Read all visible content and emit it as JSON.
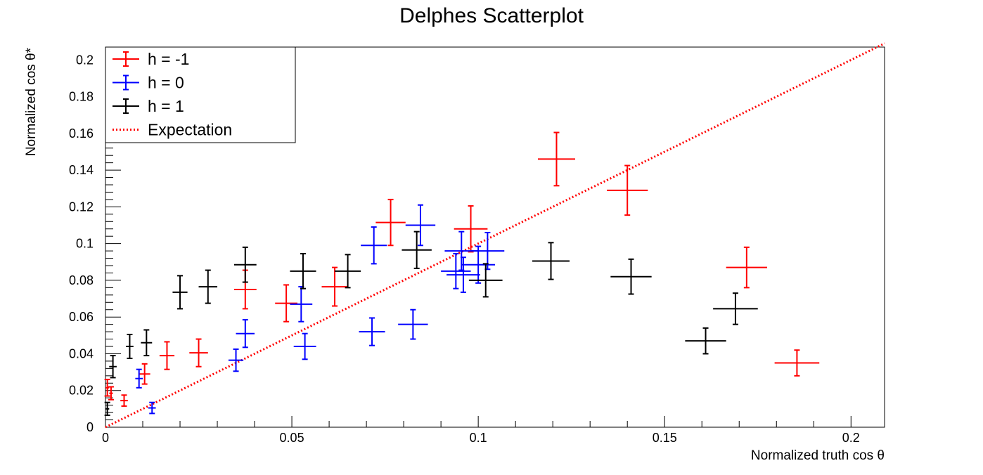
{
  "chart_data": {
    "type": "scatter",
    "title": "Delphes Scatterplot",
    "xlabel": "Normalized truth cos θ",
    "ylabel": "Normalized cos θ*",
    "xlim": [
      0,
      0.209
    ],
    "ylim": [
      0,
      0.207
    ],
    "x_ticks": [
      {
        "value": 0,
        "label": "0"
      },
      {
        "value": 0.05,
        "label": "0.05"
      },
      {
        "value": 0.1,
        "label": "0.1"
      },
      {
        "value": 0.15,
        "label": "0.15"
      },
      {
        "value": 0.2,
        "label": "0.2"
      }
    ],
    "y_ticks": [
      {
        "value": 0,
        "label": "0"
      },
      {
        "value": 0.02,
        "label": "0.02"
      },
      {
        "value": 0.04,
        "label": "0.04"
      },
      {
        "value": 0.06,
        "label": "0.06"
      },
      {
        "value": 0.08,
        "label": "0.08"
      },
      {
        "value": 0.1,
        "label": "0.1"
      },
      {
        "value": 0.12,
        "label": "0.12"
      },
      {
        "value": 0.14,
        "label": "0.14"
      },
      {
        "value": 0.16,
        "label": "0.16"
      },
      {
        "value": 0.18,
        "label": "0.18"
      },
      {
        "value": 0.2,
        "label": "0.2"
      }
    ],
    "grid": false,
    "legend_position": "top-left",
    "series": [
      {
        "name": "h = -1",
        "color": "#ff0000",
        "points": [
          {
            "x": 0.0005,
            "y": 0.0215,
            "ex": 0.0005,
            "ey": 0.0045
          },
          {
            "x": 0.0015,
            "y": 0.0185,
            "ex": 0.0005,
            "ey": 0.0035
          },
          {
            "x": 0.005,
            "y": 0.0145,
            "ex": 0.001,
            "ey": 0.003
          },
          {
            "x": 0.0105,
            "y": 0.029,
            "ex": 0.0015,
            "ey": 0.0055
          },
          {
            "x": 0.0165,
            "y": 0.039,
            "ex": 0.002,
            "ey": 0.0075
          },
          {
            "x": 0.025,
            "y": 0.0405,
            "ex": 0.0025,
            "ey": 0.0075
          },
          {
            "x": 0.0375,
            "y": 0.075,
            "ex": 0.003,
            "ey": 0.0105
          },
          {
            "x": 0.0485,
            "y": 0.0675,
            "ex": 0.003,
            "ey": 0.01
          },
          {
            "x": 0.0615,
            "y": 0.0765,
            "ex": 0.0035,
            "ey": 0.0105
          },
          {
            "x": 0.0765,
            "y": 0.1115,
            "ex": 0.004,
            "ey": 0.0125
          },
          {
            "x": 0.098,
            "y": 0.108,
            "ex": 0.0045,
            "ey": 0.0125
          },
          {
            "x": 0.121,
            "y": 0.146,
            "ex": 0.005,
            "ey": 0.0145
          },
          {
            "x": 0.14,
            "y": 0.129,
            "ex": 0.0055,
            "ey": 0.0135
          },
          {
            "x": 0.172,
            "y": 0.087,
            "ex": 0.0055,
            "ey": 0.011
          },
          {
            "x": 0.1855,
            "y": 0.035,
            "ex": 0.006,
            "ey": 0.007
          }
        ]
      },
      {
        "name": "h = 0",
        "color": "#0000ff",
        "points": [
          {
            "x": 0.009,
            "y": 0.0265,
            "ex": 0.001,
            "ey": 0.005
          },
          {
            "x": 0.0125,
            "y": 0.0105,
            "ex": 0.001,
            "ey": 0.003
          },
          {
            "x": 0.035,
            "y": 0.0365,
            "ex": 0.002,
            "ey": 0.006
          },
          {
            "x": 0.0375,
            "y": 0.051,
            "ex": 0.0025,
            "ey": 0.0075
          },
          {
            "x": 0.0525,
            "y": 0.067,
            "ex": 0.003,
            "ey": 0.0095
          },
          {
            "x": 0.0535,
            "y": 0.044,
            "ex": 0.003,
            "ey": 0.007
          },
          {
            "x": 0.0715,
            "y": 0.052,
            "ex": 0.0035,
            "ey": 0.0075
          },
          {
            "x": 0.072,
            "y": 0.099,
            "ex": 0.0035,
            "ey": 0.01
          },
          {
            "x": 0.0825,
            "y": 0.056,
            "ex": 0.004,
            "ey": 0.008
          },
          {
            "x": 0.0845,
            "y": 0.11,
            "ex": 0.004,
            "ey": 0.011
          },
          {
            "x": 0.094,
            "y": 0.085,
            "ex": 0.004,
            "ey": 0.0095
          },
          {
            "x": 0.0955,
            "y": 0.096,
            "ex": 0.0045,
            "ey": 0.0105
          },
          {
            "x": 0.096,
            "y": 0.083,
            "ex": 0.0045,
            "ey": 0.0095
          },
          {
            "x": 0.1,
            "y": 0.0885,
            "ex": 0.0045,
            "ey": 0.01
          },
          {
            "x": 0.1025,
            "y": 0.096,
            "ex": 0.0045,
            "ey": 0.01
          }
        ]
      },
      {
        "name": "h = 1",
        "color": "#000000",
        "points": [
          {
            "x": 0.0005,
            "y": 0.01,
            "ex": 0.0005,
            "ey": 0.0035
          },
          {
            "x": 0.002,
            "y": 0.033,
            "ex": 0.001,
            "ey": 0.006
          },
          {
            "x": 0.0065,
            "y": 0.044,
            "ex": 0.001,
            "ey": 0.0065
          },
          {
            "x": 0.011,
            "y": 0.046,
            "ex": 0.0015,
            "ey": 0.007
          },
          {
            "x": 0.02,
            "y": 0.0735,
            "ex": 0.002,
            "ey": 0.009
          },
          {
            "x": 0.0275,
            "y": 0.0765,
            "ex": 0.0025,
            "ey": 0.009
          },
          {
            "x": 0.0375,
            "y": 0.0885,
            "ex": 0.003,
            "ey": 0.0095
          },
          {
            "x": 0.053,
            "y": 0.085,
            "ex": 0.0035,
            "ey": 0.0095
          },
          {
            "x": 0.065,
            "y": 0.085,
            "ex": 0.0035,
            "ey": 0.009
          },
          {
            "x": 0.0835,
            "y": 0.0965,
            "ex": 0.004,
            "ey": 0.01
          },
          {
            "x": 0.102,
            "y": 0.08,
            "ex": 0.0045,
            "ey": 0.009
          },
          {
            "x": 0.1195,
            "y": 0.0905,
            "ex": 0.005,
            "ey": 0.01
          },
          {
            "x": 0.141,
            "y": 0.082,
            "ex": 0.0055,
            "ey": 0.0095
          },
          {
            "x": 0.161,
            "y": 0.047,
            "ex": 0.0055,
            "ey": 0.007
          },
          {
            "x": 0.169,
            "y": 0.0645,
            "ex": 0.006,
            "ey": 0.0085
          }
        ]
      }
    ],
    "lines": [
      {
        "name": "Expectation",
        "color": "#ff0000",
        "style": "dotted",
        "x": [
          0,
          0.209
        ],
        "y": [
          0,
          0.209
        ]
      }
    ]
  }
}
